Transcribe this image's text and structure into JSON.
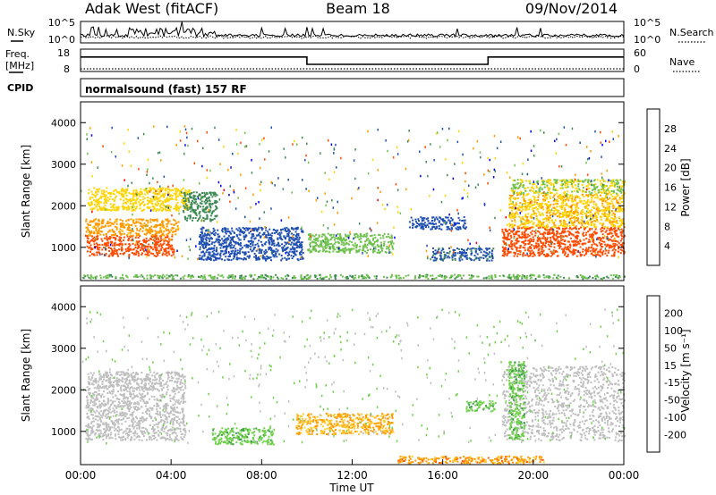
{
  "header": {
    "station": "Adak West (fitACF)",
    "beam": "Beam 18",
    "date": "09/Nov/2014"
  },
  "noise_panel": {
    "left_label": "N.Sky",
    "right_label": "N.Search",
    "left_ticks": [
      "10^5",
      "10^0"
    ],
    "right_ticks": [
      "10^5",
      "10^0"
    ]
  },
  "freq_panel": {
    "left_label_1": "Freq.",
    "left_label_2": "[MHz]",
    "right_label": "Nave",
    "left_ticks": [
      "18",
      "8"
    ],
    "right_ticks": [
      "60",
      "0"
    ],
    "cpid_label": "CPID",
    "cpid_text": "normalsound (fast) 157 RF"
  },
  "colors": {
    "power_scale": [
      "#0000ff",
      "#1f4fb0",
      "#3e8a55",
      "#6fc24e",
      "#ffd400",
      "#ff9a00",
      "#ff4a00",
      "#ff0000"
    ],
    "velocity_scale": [
      "#ff0000",
      "#ff5a00",
      "#ff9a00",
      "#ffcc33",
      "#bebebe",
      "#6fd14a",
      "#3e9a50",
      "#1f4fb0",
      "#0000ff"
    ]
  },
  "chart_data": [
    {
      "type": "heatmap",
      "name": "power",
      "ylabel": "Slant Range [km]",
      "y_ticks": [
        "1000",
        "2000",
        "3000",
        "4000"
      ],
      "ylim": [
        200,
        4500
      ],
      "colorbar_label": "Power [dB]",
      "colorbar_ticks": [
        "4",
        "8",
        "12",
        "16",
        "20",
        "24",
        "28"
      ],
      "clim": [
        0,
        32
      ],
      "regions": [
        {
          "t": [
            0.25,
            4.1
          ],
          "r": [
            800,
            1300
          ],
          "value": 28
        },
        {
          "t": [
            0.2,
            4.3
          ],
          "r": [
            1300,
            1700
          ],
          "value": 22
        },
        {
          "t": [
            0.3,
            4.8
          ],
          "r": [
            1900,
            2450
          ],
          "value": 18
        },
        {
          "t": [
            4.5,
            6.0
          ],
          "r": [
            1650,
            2350
          ],
          "value": 9
        },
        {
          "t": [
            5.2,
            9.8
          ],
          "r": [
            700,
            1500
          ],
          "value": 5
        },
        {
          "t": [
            10.0,
            13.8
          ],
          "r": [
            880,
            1350
          ],
          "value": 14
        },
        {
          "t": [
            14.5,
            17.0
          ],
          "r": [
            1450,
            1750
          ],
          "value": 5
        },
        {
          "t": [
            15.5,
            18.2
          ],
          "r": [
            700,
            1000
          ],
          "value": 6
        },
        {
          "t": [
            18.6,
            24.0
          ],
          "r": [
            800,
            1500
          ],
          "value": 28
        },
        {
          "t": [
            18.9,
            24.0
          ],
          "r": [
            1500,
            2300
          ],
          "value": 20
        },
        {
          "t": [
            19.0,
            24.0
          ],
          "r": [
            2300,
            2650
          ],
          "value": 16
        },
        {
          "t": [
            0.0,
            24.0
          ],
          "r": [
            260,
            360
          ],
          "value": 12
        }
      ]
    },
    {
      "type": "heatmap",
      "name": "velocity",
      "ylabel": "Slant Range [km]",
      "y_ticks": [
        "1000",
        "2000",
        "3000",
        "4000"
      ],
      "ylim": [
        200,
        4500
      ],
      "xlabel": "Time UT",
      "x_ticks": [
        "00:00",
        "04:00",
        "08:00",
        "12:00",
        "16:00",
        "20:00",
        "00:00"
      ],
      "xlim": [
        0,
        24
      ],
      "colorbar_label": "Velocity [m s⁻¹]",
      "colorbar_ticks": [
        "200",
        "100",
        "50",
        "15",
        "-15",
        "-50",
        "-100",
        "-200"
      ],
      "regions": [
        {
          "t": [
            0.2,
            4.6
          ],
          "r": [
            800,
            2100
          ],
          "value": 0
        },
        {
          "t": [
            0.3,
            4.6
          ],
          "r": [
            2100,
            2450
          ],
          "value": 0
        },
        {
          "t": [
            5.8,
            8.5
          ],
          "r": [
            700,
            1100
          ],
          "value": 40
        },
        {
          "t": [
            9.5,
            13.8
          ],
          "r": [
            950,
            1450
          ],
          "value": -30
        },
        {
          "t": [
            14.0,
            20.5
          ],
          "r": [
            250,
            420
          ],
          "value": -40
        },
        {
          "t": [
            17.0,
            18.3
          ],
          "r": [
            1500,
            1750
          ],
          "value": 40
        },
        {
          "t": [
            18.6,
            24.0
          ],
          "r": [
            800,
            2600
          ],
          "value": 0
        },
        {
          "t": [
            18.9,
            19.6
          ],
          "r": [
            800,
            2700
          ],
          "value": 40
        }
      ]
    },
    {
      "type": "line",
      "name": "frequency",
      "x": [
        0,
        10,
        10,
        18,
        18,
        24
      ],
      "values": [
        14.5,
        14.5,
        11.2,
        11.2,
        14.5,
        14.5
      ],
      "ylim": [
        8,
        18
      ]
    }
  ]
}
